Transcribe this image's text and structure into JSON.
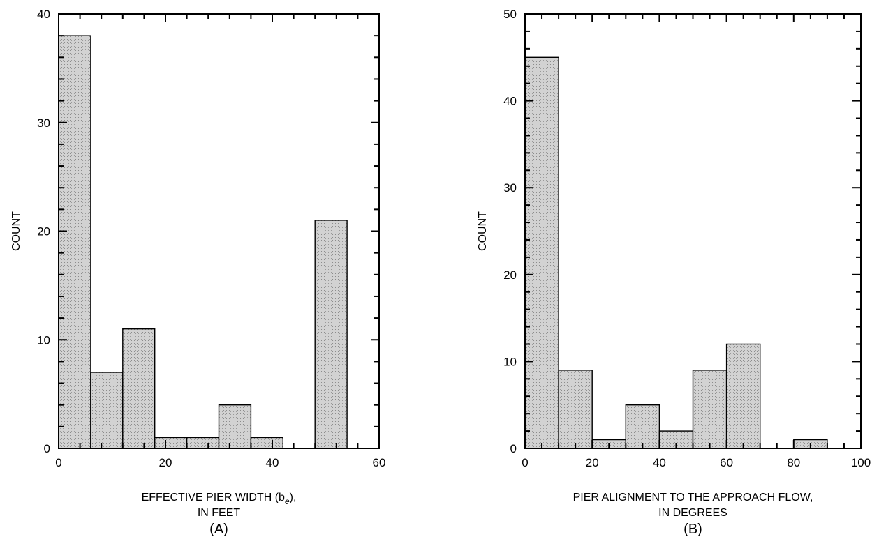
{
  "chart_data": [
    {
      "type": "bar",
      "panel_label": "(A)",
      "xlabel_lines": [
        "EFFECTIVE PIER WIDTH (b",
        "e",
        "),",
        "IN FEET"
      ],
      "ylabel": "COUNT",
      "xlim": [
        0,
        60
      ],
      "ylim": [
        0,
        40
      ],
      "xticks": [
        0,
        20,
        40,
        60
      ],
      "yticks": [
        0,
        10,
        20,
        30,
        40
      ],
      "x_minor_step": 4,
      "y_minor_step": 2,
      "bin_width": 6,
      "bins": [
        {
          "start": 0,
          "end": 6,
          "count": 38
        },
        {
          "start": 6,
          "end": 12,
          "count": 7
        },
        {
          "start": 12,
          "end": 18,
          "count": 11
        },
        {
          "start": 18,
          "end": 24,
          "count": 1
        },
        {
          "start": 24,
          "end": 30,
          "count": 1
        },
        {
          "start": 30,
          "end": 36,
          "count": 4
        },
        {
          "start": 36,
          "end": 42,
          "count": 1
        },
        {
          "start": 42,
          "end": 48,
          "count": 0
        },
        {
          "start": 48,
          "end": 54,
          "count": 21
        }
      ],
      "bar_color": "#c9c9c9"
    },
    {
      "type": "bar",
      "panel_label": "(B)",
      "xlabel_lines": [
        "PIER ALIGNMENT TO THE APPROACH FLOW,",
        "IN DEGREES"
      ],
      "ylabel": "COUNT",
      "xlim": [
        0,
        100
      ],
      "ylim": [
        0,
        50
      ],
      "xticks": [
        0,
        20,
        40,
        60,
        80,
        100
      ],
      "yticks": [
        0,
        10,
        20,
        30,
        40,
        50
      ],
      "x_minor_step": 5,
      "y_minor_step": 2,
      "bin_width": 10,
      "bins": [
        {
          "start": 0,
          "end": 10,
          "count": 45
        },
        {
          "start": 10,
          "end": 20,
          "count": 9
        },
        {
          "start": 20,
          "end": 30,
          "count": 1
        },
        {
          "start": 30,
          "end": 40,
          "count": 5
        },
        {
          "start": 40,
          "end": 50,
          "count": 2
        },
        {
          "start": 50,
          "end": 60,
          "count": 9
        },
        {
          "start": 60,
          "end": 70,
          "count": 12
        },
        {
          "start": 70,
          "end": 80,
          "count": 0
        },
        {
          "start": 80,
          "end": 90,
          "count": 1
        }
      ],
      "bar_color": "#c9c9c9"
    }
  ]
}
